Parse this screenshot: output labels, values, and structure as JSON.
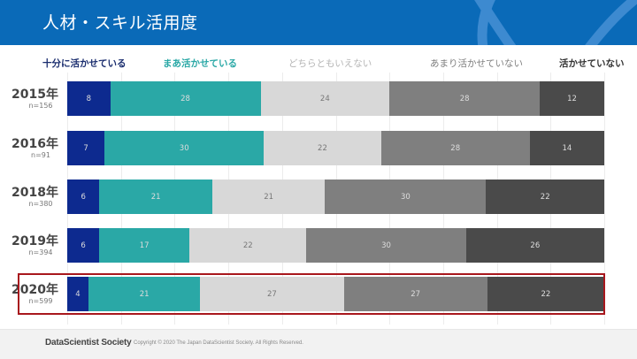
{
  "header": {
    "title": "人材・スキル活用度"
  },
  "legend": [
    {
      "label": "十分に活かせている",
      "color": "#0d2a8f",
      "text_color": "#1a2d6e"
    },
    {
      "label": "まあ活かせている",
      "color": "#2aa8a6",
      "text_color": "#2aa8a6"
    },
    {
      "label": "どちらともいえない",
      "color": "#d8d8d8",
      "text_color": "#b5b5b5"
    },
    {
      "label": "あまり活かせていない",
      "color": "#7f7f7f",
      "text_color": "#7f7f7f"
    },
    {
      "label": "活かせていない",
      "color": "#4a4a4a",
      "text_color": "#333333"
    }
  ],
  "rows": [
    {
      "year": "2015年",
      "n": "n=156",
      "values": [
        "8",
        "28",
        "24",
        "28",
        "12"
      ]
    },
    {
      "year": "2016年",
      "n": "n=91",
      "values": [
        "7",
        "30",
        "22",
        "28",
        "14"
      ]
    },
    {
      "year": "2018年",
      "n": "n=380",
      "values": [
        "6",
        "21",
        "21",
        "30",
        "22"
      ]
    },
    {
      "year": "2019年",
      "n": "n=394",
      "values": [
        "6",
        "17",
        "22",
        "30",
        "26"
      ]
    },
    {
      "year": "2020年",
      "n": "n=599",
      "values": [
        "4",
        "21",
        "27",
        "27",
        "22"
      ]
    }
  ],
  "highlight_color": "#a8171d",
  "footer": {
    "brand": "DataScientist Society",
    "copyright": "Copyright © 2020  The Japan DataScientist Society. All Rights Reserved."
  },
  "chart_data": {
    "type": "bar",
    "orientation": "horizontal",
    "stacked": true,
    "percent": true,
    "title": "人材・スキル活用度",
    "categories": [
      "2015年 (n=156)",
      "2016年 (n=91)",
      "2018年 (n=380)",
      "2019年 (n=394)",
      "2020年 (n=599)"
    ],
    "series": [
      {
        "name": "十分に活かせている",
        "values": [
          8,
          7,
          6,
          6,
          4
        ]
      },
      {
        "name": "まあ活かせている",
        "values": [
          28,
          30,
          21,
          17,
          21
        ]
      },
      {
        "name": "どちらともいえない",
        "values": [
          24,
          22,
          21,
          22,
          27
        ]
      },
      {
        "name": "あまり活かせていない",
        "values": [
          28,
          28,
          30,
          30,
          27
        ]
      },
      {
        "name": "活かせていない",
        "values": [
          12,
          14,
          22,
          26,
          22
        ]
      }
    ],
    "xlim": [
      0,
      100
    ],
    "legend_position": "top",
    "annotations": [
      "2020年 row highlighted with red border"
    ]
  }
}
